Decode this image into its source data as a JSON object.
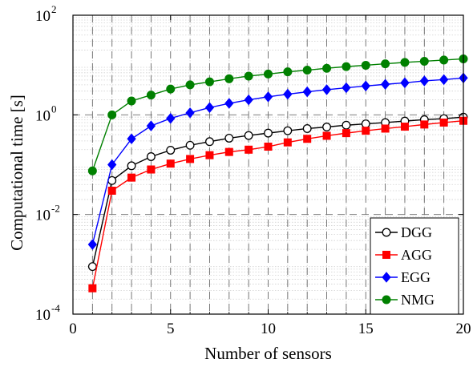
{
  "chart_data": {
    "type": "line",
    "title": "",
    "xlabel": "Number of sensors",
    "ylabel": "Computational time [s]",
    "xlim": [
      0,
      20
    ],
    "ylim": [
      0.0001,
      100
    ],
    "yscale": "log",
    "grid": true,
    "legend_position": "bottom-right",
    "x_ticks": [
      "0",
      "5",
      "10",
      "15",
      "20"
    ],
    "y_ticks": [
      {
        "base": "10",
        "exp": "-4"
      },
      {
        "base": "10",
        "exp": "-2"
      },
      {
        "base": "10",
        "exp": "0"
      },
      {
        "base": "10",
        "exp": "2"
      }
    ],
    "x": [
      1,
      2,
      3,
      4,
      5,
      6,
      7,
      8,
      9,
      10,
      11,
      12,
      13,
      14,
      15,
      16,
      17,
      18,
      19,
      20
    ],
    "series": [
      {
        "name": "DGG",
        "color": "#000000",
        "marker": "open-circle",
        "values": [
          0.0009,
          0.048,
          0.095,
          0.145,
          0.195,
          0.245,
          0.29,
          0.34,
          0.385,
          0.43,
          0.48,
          0.53,
          0.57,
          0.62,
          0.66,
          0.7,
          0.75,
          0.8,
          0.84,
          0.9
        ]
      },
      {
        "name": "AGG",
        "color": "#ff0000",
        "marker": "square",
        "values": [
          0.00033,
          0.03,
          0.055,
          0.08,
          0.105,
          0.13,
          0.155,
          0.18,
          0.2,
          0.23,
          0.28,
          0.33,
          0.38,
          0.43,
          0.48,
          0.53,
          0.58,
          0.64,
          0.7,
          0.76
        ]
      },
      {
        "name": "EGG",
        "color": "#0000ff",
        "marker": "diamond",
        "values": [
          0.0025,
          0.1,
          0.33,
          0.6,
          0.85,
          1.1,
          1.4,
          1.7,
          2.0,
          2.3,
          2.6,
          2.9,
          3.2,
          3.5,
          3.8,
          4.1,
          4.4,
          4.8,
          5.1,
          5.5
        ]
      },
      {
        "name": "NMG",
        "color": "#008000",
        "marker": "filled-circle",
        "values": [
          0.075,
          1.0,
          1.9,
          2.5,
          3.3,
          4.0,
          4.6,
          5.3,
          6.0,
          6.6,
          7.3,
          7.9,
          8.6,
          9.3,
          9.9,
          10.6,
          11.3,
          11.9,
          12.6,
          13.3
        ]
      }
    ]
  }
}
